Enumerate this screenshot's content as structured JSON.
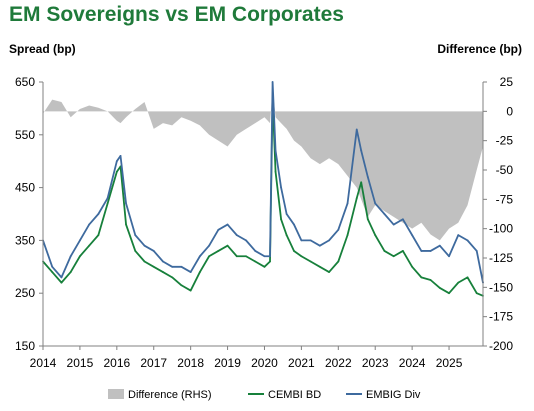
{
  "title": "EM Sovereigns vs EM Corporates",
  "chart_data": {
    "type": "line",
    "title": "EM Sovereigns vs EM Corporates",
    "ylabel": "Spread (bp)",
    "y2label": "Difference (bp)",
    "ylim": [
      150,
      650
    ],
    "y2lim": [
      -200,
      25
    ],
    "yticks": [
      "650",
      "550",
      "450",
      "350",
      "250",
      "150"
    ],
    "y2ticks": [
      "25",
      "0",
      "-25",
      "-50",
      "-75",
      "-100",
      "-125",
      "-150",
      "-175",
      "-200"
    ],
    "xticks": [
      "2014",
      "2015",
      "2016",
      "2017",
      "2018",
      "2019",
      "2020",
      "2021",
      "2022",
      "2023",
      "2024",
      "2025"
    ],
    "xlim": [
      2014.0,
      2025.92
    ],
    "grid": false,
    "legend": "bottom",
    "x": [
      2014.0,
      2014.25,
      2014.5,
      2014.75,
      2015.0,
      2015.25,
      2015.5,
      2015.75,
      2016.0,
      2016.1,
      2016.25,
      2016.5,
      2016.75,
      2017.0,
      2017.25,
      2017.5,
      2017.75,
      2018.0,
      2018.25,
      2018.5,
      2018.75,
      2019.0,
      2019.25,
      2019.5,
      2019.75,
      2020.0,
      2020.15,
      2020.22,
      2020.3,
      2020.45,
      2020.6,
      2020.8,
      2021.0,
      2021.25,
      2021.5,
      2021.75,
      2022.0,
      2022.25,
      2022.5,
      2022.62,
      2022.8,
      2023.0,
      2023.25,
      2023.5,
      2023.75,
      2024.0,
      2024.25,
      2024.5,
      2024.75,
      2025.0,
      2025.25,
      2025.5,
      2025.75,
      2025.92
    ],
    "series": [
      {
        "name": "Difference (RHS)",
        "axis": "right",
        "kind": "area",
        "color": "#c0c0c0",
        "values": [
          -2,
          10,
          8,
          -5,
          2,
          5,
          3,
          0,
          -8,
          -10,
          -5,
          2,
          8,
          -15,
          -10,
          -12,
          -5,
          -8,
          -12,
          -20,
          -25,
          -30,
          -20,
          -15,
          -10,
          -5,
          -10,
          20,
          -5,
          -10,
          -15,
          -25,
          -30,
          -40,
          -45,
          -40,
          -45,
          -55,
          -65,
          -75,
          -90,
          -80,
          -85,
          -90,
          -95,
          -100,
          -95,
          -105,
          -110,
          -100,
          -95,
          -80,
          -50,
          -30
        ]
      },
      {
        "name": "CEMBI BD",
        "axis": "left",
        "kind": "line",
        "color": "#17803b",
        "values": [
          310,
          290,
          270,
          290,
          320,
          340,
          360,
          420,
          480,
          490,
          380,
          330,
          310,
          300,
          290,
          280,
          265,
          255,
          290,
          320,
          330,
          340,
          320,
          320,
          310,
          300,
          310,
          620,
          480,
          390,
          360,
          330,
          320,
          310,
          300,
          290,
          310,
          360,
          430,
          460,
          390,
          360,
          330,
          320,
          330,
          300,
          280,
          275,
          260,
          250,
          270,
          280,
          250,
          245
        ]
      },
      {
        "name": "EMBIG Div",
        "axis": "left",
        "kind": "line",
        "color": "#3e6a9e",
        "values": [
          350,
          300,
          280,
          320,
          350,
          380,
          400,
          430,
          500,
          510,
          420,
          360,
          340,
          330,
          310,
          300,
          300,
          290,
          320,
          340,
          370,
          380,
          360,
          350,
          330,
          320,
          320,
          650,
          520,
          450,
          400,
          380,
          350,
          350,
          340,
          350,
          370,
          420,
          560,
          520,
          470,
          420,
          400,
          380,
          390,
          360,
          330,
          330,
          340,
          320,
          360,
          350,
          330,
          270
        ]
      }
    ]
  }
}
